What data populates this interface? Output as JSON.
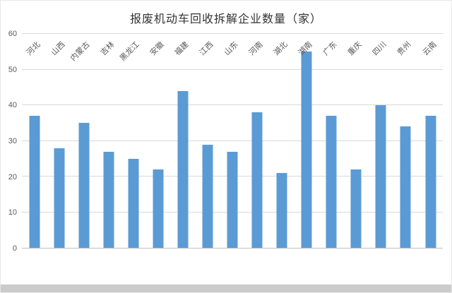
{
  "chart_data": {
    "type": "bar",
    "title": "报废机动车回收拆解企业数量（家）",
    "categories": [
      "河北",
      "山西",
      "内蒙古",
      "吉林",
      "黑龙江",
      "安徽",
      "福建",
      "江西",
      "山东",
      "河南",
      "湖北",
      "湖南",
      "广东",
      "重庆",
      "四川",
      "贵州",
      "云南"
    ],
    "values": [
      37,
      28,
      35,
      27,
      25,
      22,
      44,
      29,
      27,
      38,
      21,
      55,
      37,
      22,
      40,
      34,
      37
    ],
    "xlabel": "",
    "ylabel": "",
    "ylim": [
      0,
      60
    ],
    "ytick_step": 10,
    "grid": true,
    "legend_position": "none",
    "bar_color": "#5B9BD5",
    "gridline_color": "#D9D9D9",
    "axis_line_color": "#BFBFBF",
    "tick_label_color": "#595959",
    "title_color": "#333333",
    "page_strip_color": "#CBCBCB"
  }
}
